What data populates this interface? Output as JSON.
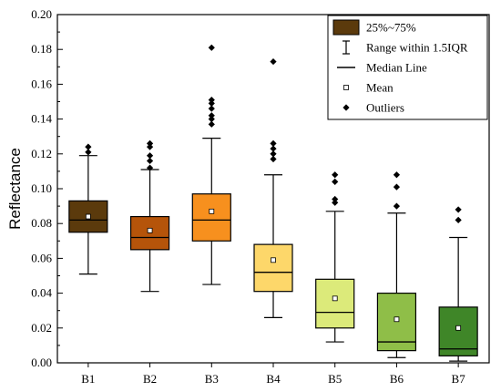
{
  "chart_data": {
    "type": "box",
    "title": "",
    "xlabel": "",
    "ylabel": "Reflectance",
    "ylim": [
      0.0,
      0.2
    ],
    "yticks": [
      "0.00",
      "0.02",
      "0.04",
      "0.06",
      "0.08",
      "0.10",
      "0.12",
      "0.14",
      "0.16",
      "0.18",
      "0.20"
    ],
    "categories": [
      "B1",
      "B2",
      "B3",
      "B4",
      "B5",
      "B6",
      "B7"
    ],
    "boxes": [
      {
        "name": "B1",
        "color": "#5b3a0c",
        "whisker_low": 0.051,
        "q1": 0.075,
        "median": 0.082,
        "q3": 0.093,
        "whisker_high": 0.119,
        "mean": 0.084,
        "outliers": [
          0.121,
          0.124
        ]
      },
      {
        "name": "B2",
        "color": "#b5540a",
        "whisker_low": 0.041,
        "q1": 0.065,
        "median": 0.072,
        "q3": 0.084,
        "whisker_high": 0.111,
        "mean": 0.076,
        "outliers": [
          0.112,
          0.116,
          0.119,
          0.124,
          0.126
        ]
      },
      {
        "name": "B3",
        "color": "#f7901e",
        "whisker_low": 0.045,
        "q1": 0.07,
        "median": 0.082,
        "q3": 0.097,
        "whisker_high": 0.129,
        "mean": 0.087,
        "outliers": [
          0.137,
          0.14,
          0.142,
          0.146,
          0.149,
          0.151,
          0.181
        ]
      },
      {
        "name": "B4",
        "color": "#fdd76a",
        "whisker_low": 0.026,
        "q1": 0.041,
        "median": 0.052,
        "q3": 0.068,
        "whisker_high": 0.108,
        "mean": 0.059,
        "outliers": [
          0.117,
          0.12,
          0.123,
          0.126,
          0.173
        ]
      },
      {
        "name": "B5",
        "color": "#dcea7a",
        "whisker_low": 0.012,
        "q1": 0.02,
        "median": 0.029,
        "q3": 0.048,
        "whisker_high": 0.087,
        "mean": 0.037,
        "outliers": [
          0.092,
          0.094,
          0.104,
          0.108
        ]
      },
      {
        "name": "B6",
        "color": "#8fbe48",
        "whisker_low": 0.003,
        "q1": 0.007,
        "median": 0.012,
        "q3": 0.04,
        "whisker_high": 0.086,
        "mean": 0.025,
        "outliers": [
          0.09,
          0.101,
          0.108
        ]
      },
      {
        "name": "B7",
        "color": "#3f8628",
        "whisker_low": 0.001,
        "q1": 0.004,
        "median": 0.008,
        "q3": 0.032,
        "whisker_high": 0.072,
        "mean": 0.02,
        "outliers": [
          0.082,
          0.088
        ]
      }
    ],
    "legend": {
      "placement": "top-right",
      "items": [
        {
          "key": "box",
          "label": "25%~75%",
          "color": "#5b3a0c"
        },
        {
          "key": "range",
          "label": "Range within 1.5IQR"
        },
        {
          "key": "median",
          "label": "Median Line"
        },
        {
          "key": "mean",
          "label": "Mean"
        },
        {
          "key": "outliers",
          "label": "Outliers"
        }
      ]
    },
    "grid": false
  }
}
